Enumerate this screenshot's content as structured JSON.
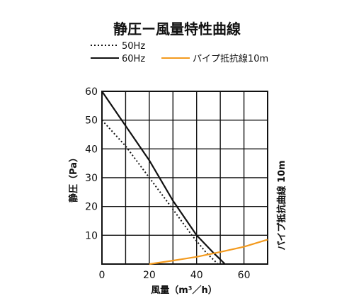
{
  "chart_data": {
    "type": "line",
    "title": "静圧ー風量特性曲線",
    "xlabel": "風量（m³／h）",
    "ylabel": "静圧（Pa）",
    "right_label": "パイプ抵抗曲線 10m",
    "xlim": [
      0,
      70
    ],
    "ylim": [
      0,
      60
    ],
    "x_ticks": [
      "0",
      "20",
      "40",
      "60"
    ],
    "y_ticks": [
      "10",
      "20",
      "30",
      "40",
      "50",
      "60"
    ],
    "grid": true,
    "legend_position": "top-left",
    "series": [
      {
        "name": "50Hz",
        "style": "dotted",
        "color": "#111111",
        "points": [
          [
            0,
            50
          ],
          [
            10,
            41
          ],
          [
            20,
            30
          ],
          [
            30,
            19
          ],
          [
            38,
            10
          ],
          [
            44,
            4
          ],
          [
            49,
            0
          ]
        ]
      },
      {
        "name": "60Hz",
        "style": "solid",
        "color": "#111111",
        "points": [
          [
            0,
            60
          ],
          [
            10,
            48
          ],
          [
            20,
            36
          ],
          [
            30,
            22
          ],
          [
            40,
            10
          ],
          [
            47,
            4
          ],
          [
            52,
            0
          ]
        ]
      },
      {
        "name": "パイプ抵抗線10m",
        "style": "solid",
        "color": "#f39a1e",
        "points": [
          [
            20,
            0
          ],
          [
            30,
            1.2
          ],
          [
            40,
            2.5
          ],
          [
            50,
            4.2
          ],
          [
            60,
            6
          ],
          [
            70,
            8.5
          ]
        ]
      }
    ]
  }
}
